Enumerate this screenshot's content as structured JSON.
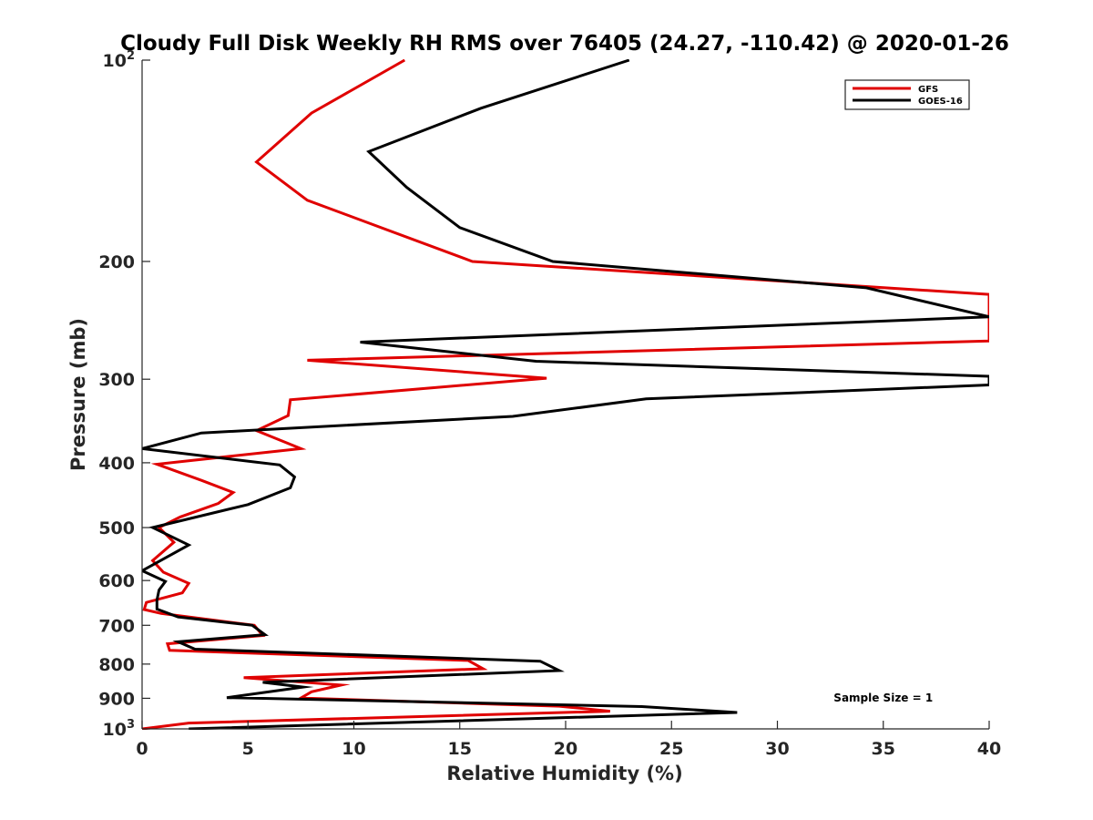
{
  "chart_data": {
    "type": "line",
    "title": "Cloudy Full Disk Weekly RH RMS over 76405 (24.27, -110.42) @ 2020-01-26",
    "xlabel": "Relative Humidity (%)",
    "ylabel": "Pressure (mb)",
    "xlim": [
      0,
      40
    ],
    "ylim": [
      100,
      1000
    ],
    "yscale": "log",
    "y_reversed": true,
    "grid": false,
    "legend_position": "top-right",
    "x_ticks": [
      {
        "value": 0,
        "label": "0"
      },
      {
        "value": 5,
        "label": "5"
      },
      {
        "value": 10,
        "label": "10"
      },
      {
        "value": 15,
        "label": "15"
      },
      {
        "value": 20,
        "label": "20"
      },
      {
        "value": 25,
        "label": "25"
      },
      {
        "value": 30,
        "label": "30"
      },
      {
        "value": 35,
        "label": "35"
      },
      {
        "value": 40,
        "label": "40"
      }
    ],
    "y_ticks": [
      {
        "value": 100,
        "base": "10",
        "exp": "2"
      },
      {
        "value": 200,
        "label": "200"
      },
      {
        "value": 300,
        "label": "300"
      },
      {
        "value": 400,
        "label": "400"
      },
      {
        "value": 500,
        "label": "500"
      },
      {
        "value": 600,
        "label": "600"
      },
      {
        "value": 700,
        "label": "700"
      },
      {
        "value": 800,
        "label": "800"
      },
      {
        "value": 900,
        "label": "900"
      },
      {
        "value": 1000,
        "base": "10",
        "exp": "3"
      }
    ],
    "series": [
      {
        "name": "GFS",
        "color": "#e00000",
        "points": [
          [
            12.4,
            100
          ],
          [
            8.0,
            120
          ],
          [
            5.4,
            142
          ],
          [
            7.8,
            162
          ],
          [
            15.6,
            200
          ],
          [
            40.0,
            224
          ],
          [
            40.0,
            263
          ],
          [
            7.8,
            281
          ],
          [
            19.1,
            299
          ],
          [
            7.0,
            322
          ],
          [
            6.9,
            340
          ],
          [
            5.4,
            358
          ],
          [
            7.5,
            381
          ],
          [
            0.7,
            402
          ],
          [
            2.8,
            425
          ],
          [
            4.3,
            443
          ],
          [
            3.6,
            460
          ],
          [
            1.8,
            482
          ],
          [
            0.8,
            500
          ],
          [
            1.5,
            526
          ],
          [
            0.5,
            560
          ],
          [
            1.0,
            583
          ],
          [
            2.2,
            606
          ],
          [
            1.9,
            626
          ],
          [
            0.2,
            647
          ],
          [
            0.1,
            663
          ],
          [
            0.9,
            672
          ],
          [
            5.3,
            700
          ],
          [
            5.7,
            725
          ],
          [
            1.2,
            746
          ],
          [
            1.3,
            763
          ],
          [
            15.4,
            790
          ],
          [
            16.1,
            813
          ],
          [
            4.8,
            838
          ],
          [
            9.4,
            860
          ],
          [
            8.0,
            880
          ],
          [
            7.5,
            899
          ],
          [
            19.7,
            925
          ],
          [
            22.1,
            941
          ],
          [
            2.2,
            980
          ],
          [
            0.0,
            1000
          ]
        ]
      },
      {
        "name": "GOES-16",
        "color": "#000000",
        "points": [
          [
            23.0,
            100
          ],
          [
            16.0,
            118
          ],
          [
            10.7,
            137
          ],
          [
            12.5,
            155
          ],
          [
            15.0,
            178
          ],
          [
            19.4,
            200
          ],
          [
            34.2,
            219
          ],
          [
            40.0,
            242
          ],
          [
            10.3,
            264
          ],
          [
            18.6,
            282
          ],
          [
            40.0,
            297
          ],
          [
            40.0,
            306
          ],
          [
            23.8,
            321
          ],
          [
            17.5,
            341
          ],
          [
            2.8,
            361
          ],
          [
            0.0,
            381
          ],
          [
            6.5,
            403
          ],
          [
            7.2,
            420
          ],
          [
            7.0,
            436
          ],
          [
            5.0,
            462
          ],
          [
            0.5,
            500
          ],
          [
            2.2,
            531
          ],
          [
            0.0,
            580
          ],
          [
            1.1,
            602
          ],
          [
            0.8,
            620
          ],
          [
            0.7,
            642
          ],
          [
            0.7,
            662
          ],
          [
            1.7,
            680
          ],
          [
            5.2,
            700
          ],
          [
            5.8,
            723
          ],
          [
            1.7,
            741
          ],
          [
            2.5,
            760
          ],
          [
            18.8,
            792
          ],
          [
            19.7,
            818
          ],
          [
            5.7,
            852
          ],
          [
            7.6,
            866
          ],
          [
            4.0,
            898
          ],
          [
            23.6,
            926
          ],
          [
            28.1,
            945
          ],
          [
            2.2,
            1000
          ]
        ]
      }
    ],
    "annotations": [
      {
        "text": "Sample Size = 1",
        "x": 35,
        "y": 899
      }
    ]
  }
}
